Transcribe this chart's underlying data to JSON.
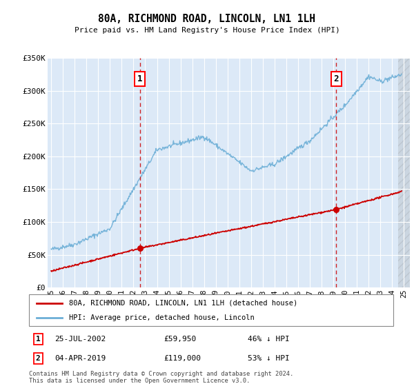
{
  "title": "80A, RICHMOND ROAD, LINCOLN, LN1 1LH",
  "subtitle": "Price paid vs. HM Land Registry's House Price Index (HPI)",
  "ylim": [
    0,
    350000
  ],
  "xlim_start": 1994.7,
  "xlim_end": 2025.5,
  "yticks": [
    0,
    50000,
    100000,
    150000,
    200000,
    250000,
    300000,
    350000
  ],
  "ytick_labels": [
    "£0",
    "£50K",
    "£100K",
    "£150K",
    "£200K",
    "£250K",
    "£300K",
    "£350K"
  ],
  "xticks": [
    1995,
    1996,
    1997,
    1998,
    1999,
    2000,
    2001,
    2002,
    2003,
    2004,
    2005,
    2006,
    2007,
    2008,
    2009,
    2010,
    2011,
    2012,
    2013,
    2014,
    2015,
    2016,
    2017,
    2018,
    2019,
    2020,
    2021,
    2022,
    2023,
    2024,
    2025
  ],
  "plot_bg_color": "#dce9f7",
  "grid_color": "#ffffff",
  "red_line_color": "#cc0000",
  "blue_line_color": "#6baed6",
  "marker1_x": 2002.56,
  "marker1_y": 59950,
  "marker2_x": 2019.25,
  "marker2_y": 119000,
  "legend_line1": "80A, RICHMOND ROAD, LINCOLN, LN1 1LH (detached house)",
  "legend_line2": "HPI: Average price, detached house, Lincoln",
  "marker1_date": "25-JUL-2002",
  "marker1_price": "£59,950",
  "marker1_hpi": "46% ↓ HPI",
  "marker2_date": "04-APR-2019",
  "marker2_price": "£119,000",
  "marker2_hpi": "53% ↓ HPI",
  "footer": "Contains HM Land Registry data © Crown copyright and database right 2024.\nThis data is licensed under the Open Government Licence v3.0.",
  "hatch_start": 2024.5
}
